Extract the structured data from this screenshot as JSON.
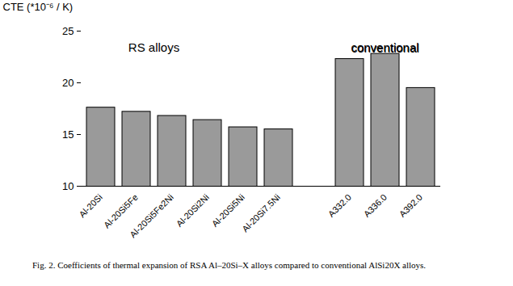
{
  "chart_data": {
    "type": "bar",
    "caption": "Fig. 2. Coefficients of thermal expansion of RSA Al–20Si–X alloys compared to conventional AlSi20X alloys.",
    "y_label": "CTE (*10⁻⁶ / K)",
    "categories": [
      "Al-20Si",
      "Al-20Si5Fe",
      "Al-20Si5Fe2Ni",
      "Al-20Si2Ni",
      "Al-20Si5Ni",
      "Al-20Si7.5Ni",
      null,
      "A332.0",
      "A336.0",
      "A392.0"
    ],
    "values": [
      17.6,
      17.2,
      16.8,
      16.4,
      15.7,
      15.5,
      null,
      22.3,
      22.8,
      19.5
    ],
    "color": "#9a9a9a",
    "ylim": [
      10,
      25
    ],
    "yticks": [
      10,
      15,
      20,
      25
    ],
    "grid": false,
    "annotations": [
      {
        "text": "RS alloys",
        "x": 1.5,
        "y": 23.3
      },
      {
        "text": "conventional",
        "x": 8,
        "y": 23.3
      }
    ]
  }
}
